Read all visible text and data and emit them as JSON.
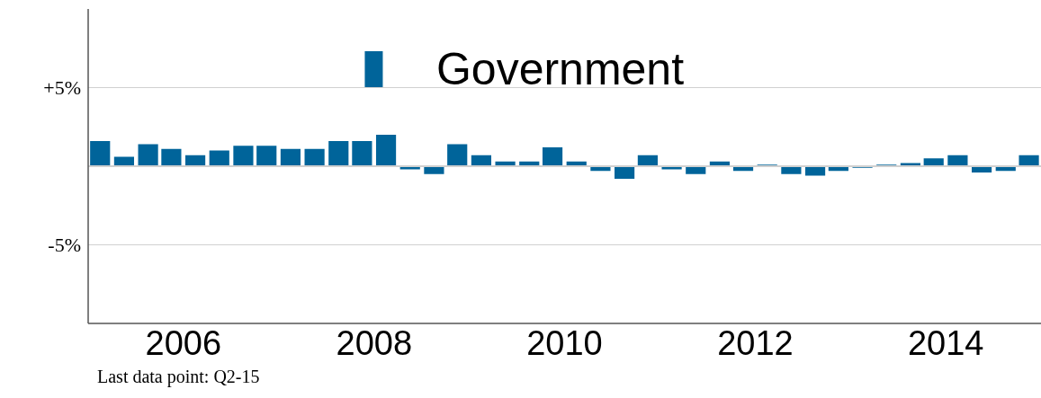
{
  "chart_data": {
    "type": "bar",
    "x": [
      "2005-08-15",
      "2005-11-15",
      "2006-02-15",
      "2006-05-15",
      "2006-08-15",
      "2006-11-15",
      "2007-02-15",
      "2007-05-15",
      "2007-08-15",
      "2007-11-15",
      "2008-02-15",
      "2008-05-15",
      "2008-08-15",
      "2008-11-15",
      "2009-02-15",
      "2009-05-15",
      "2009-08-15",
      "2009-11-15",
      "2010-02-15",
      "2010-05-15",
      "2010-08-15",
      "2010-11-15",
      "2011-02-15",
      "2011-05-15",
      "2011-08-15",
      "2011-11-15",
      "2012-02-15",
      "2012-05-15",
      "2012-08-15",
      "2012-11-15",
      "2013-02-15",
      "2013-05-15",
      "2013-08-15",
      "2013-11-15",
      "2014-02-15",
      "2014-05-15",
      "2014-08-15",
      "2014-11-15",
      "2015-02-15",
      "2015-05-15"
    ],
    "series": [
      {
        "name": "Government",
        "color": "#00649a",
        "values": [
          1.6,
          0.6,
          1.4,
          1.1,
          0.7,
          1.0,
          1.3,
          1.3,
          1.1,
          1.1,
          1.6,
          1.6,
          2.0,
          -0.2,
          -0.5,
          1.4,
          0.7,
          0.3,
          0.3,
          1.2,
          0.3,
          -0.3,
          -0.8,
          0.7,
          -0.2,
          -0.5,
          0.3,
          -0.3,
          0.1,
          -0.5,
          -0.6,
          -0.3,
          -0.1,
          0.1,
          0.2,
          0.5,
          0.7,
          -0.4,
          -0.3,
          0.7
        ]
      }
    ],
    "xlim": [
      "2005-07-01",
      "2015-07-01"
    ],
    "xticks": [
      {
        "value": "2006-07-01",
        "label": "2006"
      },
      {
        "value": "2008-07-01",
        "label": "2008"
      },
      {
        "value": "2010-07-01",
        "label": "2010"
      },
      {
        "value": "2012-07-01",
        "label": "2012"
      },
      {
        "value": "2014-07-01",
        "label": "2014"
      }
    ],
    "ylim": [
      -10,
      10
    ],
    "yticks": [
      {
        "value": -5,
        "label": "-5%"
      },
      {
        "value": 5,
        "label": "+5%"
      }
    ],
    "grid": "y",
    "legend": "top",
    "annotations": [
      "Last data point: Q2-15"
    ]
  }
}
